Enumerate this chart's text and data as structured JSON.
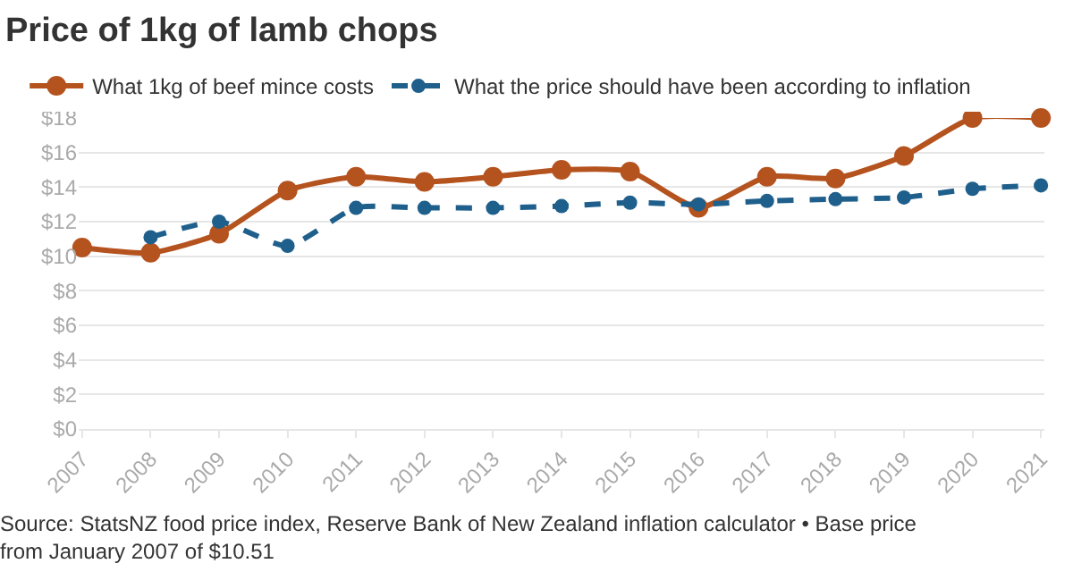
{
  "chart_data": {
    "type": "line",
    "title": "Price of 1kg of lamb chops",
    "categories": [
      "2007",
      "2008",
      "2009",
      "2010",
      "2011",
      "2012",
      "2013",
      "2014",
      "2015",
      "2016",
      "2017",
      "2018",
      "2019",
      "2020",
      "2021"
    ],
    "series": [
      {
        "name": "What 1kg of beef mince costs",
        "color": "#b5531f",
        "line_style": "solid",
        "values": [
          10.5,
          10.2,
          11.3,
          13.8,
          14.6,
          14.3,
          14.6,
          15.0,
          14.9,
          12.8,
          14.6,
          14.5,
          15.8,
          18.0,
          18.0
        ]
      },
      {
        "name": "What the price should have been according to inflation",
        "color": "#1f5f8b",
        "line_style": "dashed",
        "values": [
          null,
          11.1,
          12.0,
          10.6,
          12.8,
          12.8,
          12.8,
          12.9,
          13.1,
          13.0,
          13.2,
          13.3,
          13.4,
          13.9,
          14.1
        ]
      }
    ],
    "ylim": [
      0,
      18
    ],
    "yticks": [
      {
        "value": 0,
        "label": "$0"
      },
      {
        "value": 2,
        "label": "$2"
      },
      {
        "value": 4,
        "label": "$4"
      },
      {
        "value": 6,
        "label": "$6"
      },
      {
        "value": 8,
        "label": "$8"
      },
      {
        "value": 10,
        "label": "$10"
      },
      {
        "value": 12,
        "label": "$12"
      },
      {
        "value": 14,
        "label": "$14"
      },
      {
        "value": 16,
        "label": "$16"
      },
      {
        "value": 18,
        "label": "$18"
      }
    ],
    "grid": "y",
    "legend": "top left",
    "marker": "circle",
    "annotations": [
      "Source: StatsNZ food price index, Reserve Bank of New Zealand inflation calculator • Base price from January 2007 of $10.51"
    ]
  }
}
